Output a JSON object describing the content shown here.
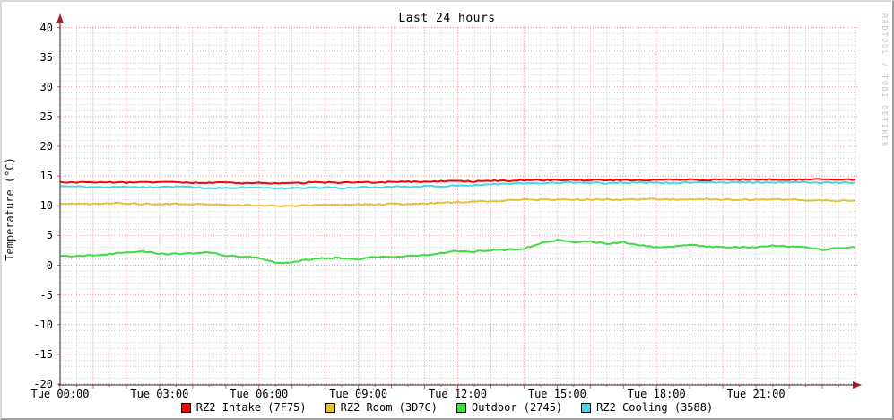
{
  "title": "Last 24 hours",
  "watermark": "RRDTOOL / TOBI OETIKER",
  "ylabel": "Temperature (°C)",
  "legend": [
    {
      "label": "RZ2 Intake (7F75)",
      "color": "#ff0000",
      "swatch_icon": "red-square"
    },
    {
      "label": "RZ2 Room (3D7C)",
      "color": "#e2c23c",
      "swatch_icon": "gold-square"
    },
    {
      "label": "Outdoor (2745)",
      "color": "#3fdb3f",
      "swatch_icon": "green-square"
    },
    {
      "label": "RZ2 Cooling (3588)",
      "color": "#45d7e8",
      "swatch_icon": "cyan-square"
    }
  ],
  "colors": {
    "grid_major": "#ee9393",
    "grid_minor": "#cccccc",
    "axis": "#222222",
    "arrow": "#9d1f1f",
    "tick": "#e06060",
    "background": "#ffffff",
    "watermark_text": "#c3c3c3"
  },
  "chart_data": {
    "type": "line",
    "title": "Last 24 hours",
    "xlabel": "",
    "ylabel": "Temperature (°C)",
    "ylim": [
      -20,
      40
    ],
    "y_major_step": 5,
    "y_minor_step": 1,
    "y_tick_labels": [
      "40",
      "35",
      "30",
      "25",
      "20",
      "15",
      "10",
      "5",
      "0",
      "-5",
      "-10",
      "-15",
      "-20"
    ],
    "x_range_hours": [
      0,
      24
    ],
    "x_minor_step_hours": 0.5,
    "x_major_step_hours": 1,
    "x_label_step_hours": 3,
    "x_tick_labels": [
      "Tue 00:00",
      "Tue 03:00",
      "Tue 06:00",
      "Tue 09:00",
      "Tue 12:00",
      "Tue 15:00",
      "Tue 18:00",
      "Tue 21:00"
    ],
    "grid": true,
    "legend_position": "bottom",
    "sample_step_hours": 0.5,
    "series": [
      {
        "name": "RZ2 Intake (7F75)",
        "color": "#ff0000",
        "values": [
          13.9,
          13.9,
          13.9,
          14.0,
          13.9,
          13.9,
          13.9,
          14.0,
          13.9,
          13.9,
          13.9,
          13.8,
          13.8,
          13.8,
          13.8,
          13.9,
          13.9,
          13.9,
          14.0,
          13.9,
          14.0,
          14.0,
          14.0,
          14.1,
          14.1,
          14.1,
          14.2,
          14.2,
          14.3,
          14.3,
          14.3,
          14.3,
          14.3,
          14.3,
          14.3,
          14.3,
          14.3,
          14.4,
          14.4,
          14.3,
          14.4,
          14.4,
          14.4,
          14.4,
          14.4,
          14.4,
          14.4,
          14.4,
          14.4
        ]
      },
      {
        "name": "RZ2 Room (3D7C)",
        "color": "#e2c23c",
        "values": [
          10.3,
          10.3,
          10.3,
          10.4,
          10.4,
          10.3,
          10.3,
          10.3,
          10.3,
          10.2,
          10.2,
          10.1,
          10.1,
          10.0,
          10.0,
          10.1,
          10.1,
          10.2,
          10.2,
          10.2,
          10.3,
          10.3,
          10.4,
          10.5,
          10.6,
          10.7,
          10.8,
          10.9,
          11.0,
          11.0,
          11.0,
          11.0,
          11.0,
          11.1,
          11.0,
          11.1,
          11.1,
          11.0,
          11.0,
          11.1,
          11.0,
          11.0,
          11.0,
          11.1,
          11.0,
          10.9,
          10.9,
          10.8,
          10.9
        ]
      },
      {
        "name": "Outdoor (2745)",
        "color": "#3fdb3f",
        "values": [
          1.5,
          1.6,
          1.6,
          1.8,
          2.2,
          2.3,
          1.9,
          1.9,
          2.0,
          2.2,
          1.6,
          1.5,
          1.2,
          0.5,
          0.4,
          1.0,
          1.2,
          1.2,
          1.0,
          1.4,
          1.3,
          1.5,
          1.7,
          2.0,
          2.4,
          2.3,
          2.5,
          2.6,
          2.8,
          3.7,
          4.2,
          3.9,
          4.0,
          3.6,
          3.9,
          3.3,
          3.0,
          3.1,
          3.5,
          3.1,
          3.0,
          3.0,
          3.0,
          3.3,
          3.1,
          3.0,
          2.6,
          2.9,
          3.0
        ]
      },
      {
        "name": "RZ2 Cooling (3588)",
        "color": "#45d7e8",
        "values": [
          13.3,
          13.2,
          13.2,
          13.1,
          13.2,
          13.1,
          13.1,
          13.2,
          13.1,
          13.0,
          13.0,
          13.1,
          13.0,
          12.9,
          13.0,
          13.0,
          13.1,
          13.0,
          13.1,
          13.1,
          13.2,
          13.2,
          13.3,
          13.3,
          13.4,
          13.5,
          13.6,
          13.7,
          13.8,
          13.8,
          13.8,
          13.9,
          13.9,
          13.8,
          13.9,
          13.9,
          13.9,
          13.8,
          13.9,
          13.9,
          13.9,
          14.0,
          13.9,
          13.9,
          14.0,
          13.9,
          13.9,
          13.9,
          13.9
        ]
      }
    ]
  }
}
